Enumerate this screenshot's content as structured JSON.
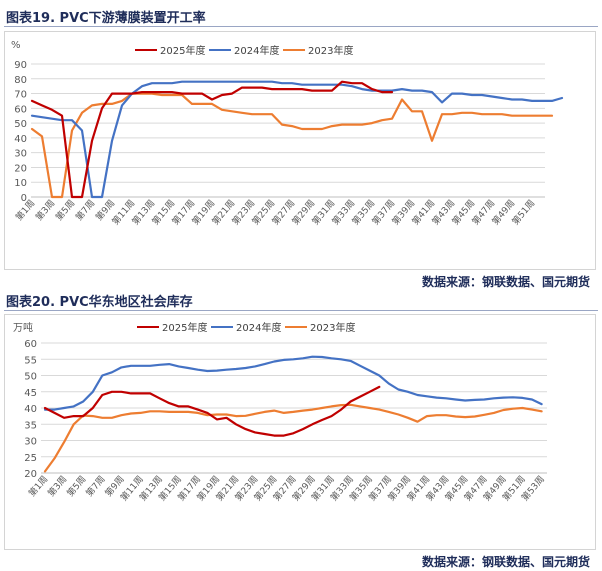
{
  "figures": [
    {
      "title": "图表19.  PVC下游薄膜装置开工率",
      "source": "数据来源：钢联数据、国元期货"
    },
    {
      "title": "图表20.  PVC华东地区社会库存",
      "source": "数据来源：钢联数据、国元期货"
    }
  ],
  "chart_data": [
    {
      "type": "line",
      "ylabel": "%",
      "ylim": [
        0,
        90
      ],
      "yticks": [
        0,
        10,
        20,
        30,
        40,
        50,
        60,
        70,
        80,
        90
      ],
      "x_tick_labels": [
        "第1周",
        "第3周",
        "第5周",
        "第7周",
        "第9周",
        "第11周",
        "第13周",
        "第15周",
        "第17周",
        "第19周",
        "第21周",
        "第23周",
        "第25周",
        "第27周",
        "第29周",
        "第31周",
        "第33周",
        "第35周",
        "第37周",
        "第39周",
        "第41周",
        "第43周",
        "第45周",
        "第47周",
        "第49周",
        "第51周"
      ],
      "grid": true,
      "legend": "top",
      "series": [
        {
          "name": "2025年度",
          "color": "#c00000",
          "values": [
            65,
            62,
            59,
            55,
            0,
            0,
            38,
            60,
            70,
            70,
            70,
            71,
            71,
            71,
            71,
            70,
            70,
            70,
            66,
            69,
            70,
            74,
            74,
            74,
            73,
            73,
            73,
            73,
            72,
            72,
            72,
            78,
            77,
            77,
            73,
            71,
            71
          ]
        },
        {
          "name": "2024年度",
          "color": "#4472c4",
          "values": [
            55,
            54,
            53,
            52,
            52,
            45,
            0,
            0,
            38,
            62,
            70,
            75,
            77,
            77,
            77,
            78,
            78,
            78,
            78,
            78,
            78,
            78,
            78,
            78,
            78,
            77,
            77,
            76,
            76,
            76,
            76,
            76,
            75,
            73,
            72,
            72,
            72,
            73,
            72,
            72,
            71,
            64,
            70,
            70,
            69,
            69,
            68,
            67,
            66,
            66,
            65,
            65,
            65,
            67
          ]
        },
        {
          "name": "2023年度",
          "color": "#ed7d31",
          "values": [
            46,
            41,
            0,
            0,
            45,
            57,
            62,
            63,
            63,
            65,
            70,
            70,
            70,
            69,
            69,
            69,
            63,
            63,
            63,
            59,
            58,
            57,
            56,
            56,
            56,
            49,
            48,
            46,
            46,
            46,
            48,
            49,
            49,
            49,
            50,
            52,
            53,
            66,
            58,
            58,
            38,
            56,
            56,
            57,
            57,
            56,
            56,
            56,
            55,
            55,
            55,
            55,
            55
          ]
        }
      ]
    },
    {
      "type": "line",
      "ylabel": "万吨",
      "ylim": [
        20,
        60
      ],
      "yticks": [
        20,
        25,
        30,
        35,
        40,
        45,
        50,
        55,
        60
      ],
      "x_tick_labels": [
        "第1周",
        "第3周",
        "第5周",
        "第7周",
        "第9周",
        "第11周",
        "第13周",
        "第15周",
        "第17周",
        "第19周",
        "第21周",
        "第23周",
        "第25周",
        "第27周",
        "第29周",
        "第31周",
        "第33周",
        "第35周",
        "第37周",
        "第39周",
        "第41周",
        "第43周",
        "第45周",
        "第47周",
        "第49周",
        "第51周",
        "第53周"
      ],
      "grid": true,
      "legend": "top",
      "series": [
        {
          "name": "2025年度",
          "color": "#c00000",
          "values": [
            40,
            38.5,
            37,
            37.5,
            37.5,
            40,
            44,
            45,
            45,
            44.5,
            44.5,
            44.5,
            43,
            41.5,
            40.5,
            40.5,
            39.5,
            38.5,
            36.5,
            37,
            35,
            33.5,
            32.5,
            32,
            31.5,
            31.5,
            32.2,
            33.5,
            35,
            36.3,
            37.5,
            39.5,
            42,
            43.5,
            45,
            46.5
          ]
        },
        {
          "name": "2024年度",
          "color": "#4472c4",
          "values": [
            39.5,
            39.5,
            40,
            40.5,
            42,
            45,
            50,
            51,
            52.5,
            53,
            53,
            53,
            53.3,
            53.5,
            52.8,
            52.3,
            51.8,
            51.4,
            51.5,
            51.8,
            52,
            52.3,
            52.8,
            53.5,
            54.3,
            54.8,
            55,
            55.3,
            55.8,
            55.7,
            55.3,
            55,
            54.5,
            53,
            51.5,
            50,
            47.5,
            45.7,
            45,
            44,
            43.6,
            43.2,
            43,
            42.6,
            42.3,
            42.5,
            42.6,
            43,
            43.2,
            43.3,
            43.1,
            42.6,
            41.2
          ]
        },
        {
          "name": "2023年度",
          "color": "#ed7d31",
          "values": [
            20.5,
            24.5,
            29.5,
            35,
            37.7,
            37.5,
            37,
            37,
            37.8,
            38.3,
            38.5,
            39,
            39,
            38.8,
            38.8,
            38.8,
            38.5,
            37.8,
            38,
            38,
            37.5,
            37.6,
            38.2,
            38.8,
            39.2,
            38.5,
            38.8,
            39.2,
            39.5,
            40,
            40.5,
            40.9,
            41,
            40.5,
            40,
            39.5,
            38.8,
            38,
            37,
            35.8,
            37.5,
            37.8,
            37.8,
            37.4,
            37.2,
            37.4,
            37.9,
            38.5,
            39.4,
            39.8,
            40,
            39.5,
            39
          ]
        }
      ]
    }
  ]
}
